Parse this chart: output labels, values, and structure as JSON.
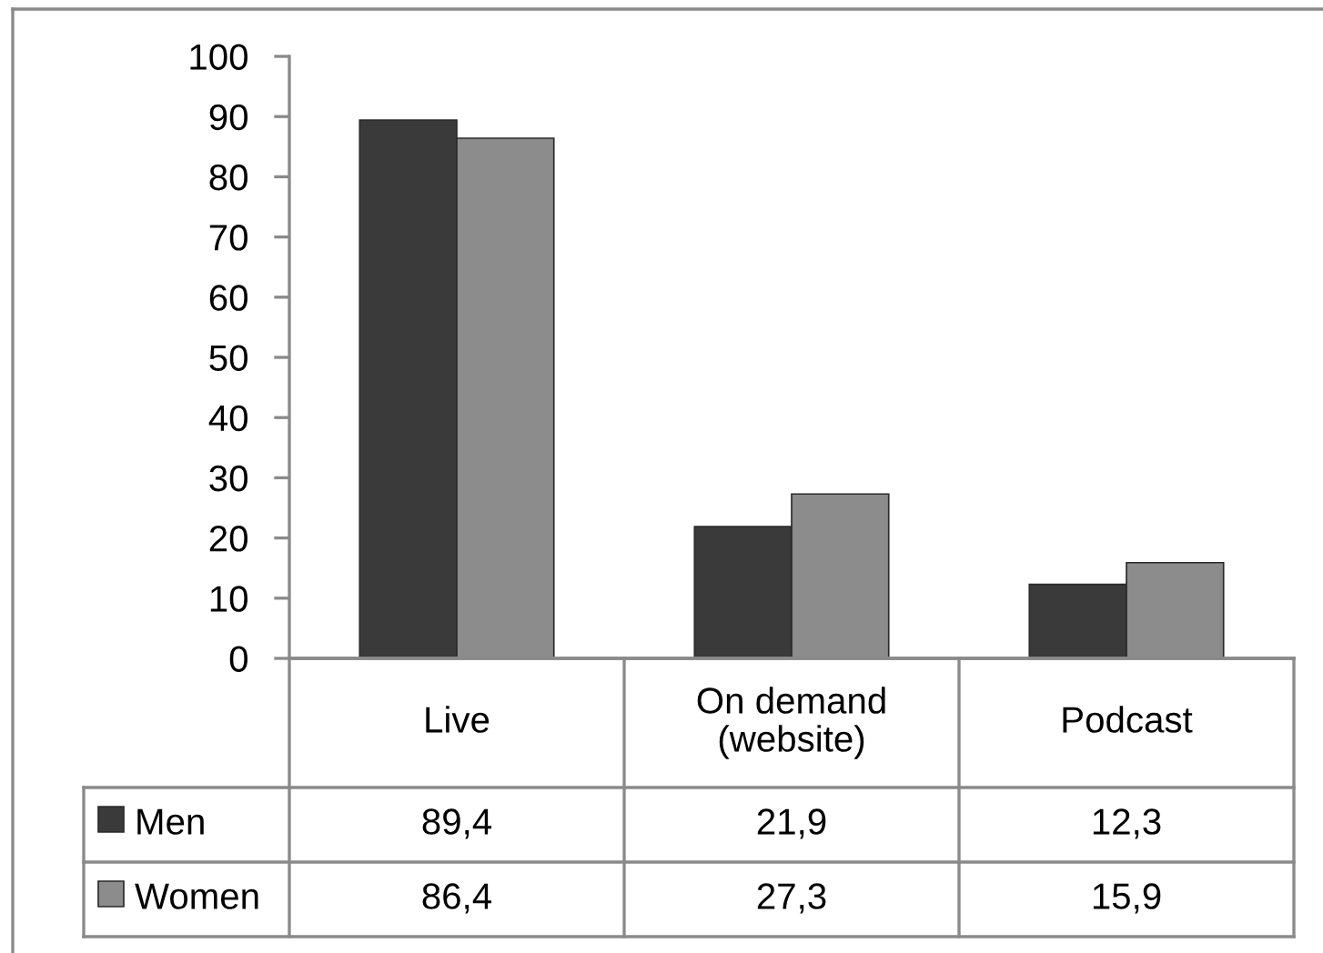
{
  "chart_data": {
    "type": "bar",
    "categories": [
      "Live",
      "On demand\n(website)",
      "Podcast"
    ],
    "series": [
      {
        "name": "Men",
        "color": "#3a3a3a",
        "values": [
          89.4,
          21.9,
          12.3
        ],
        "value_labels": [
          "89,4",
          "21,9",
          "12,3"
        ]
      },
      {
        "name": "Women",
        "color": "#8c8c8c",
        "values": [
          86.4,
          27.3,
          15.9
        ],
        "value_labels": [
          "86,4",
          "27,3",
          "15,9"
        ]
      }
    ],
    "ylim": [
      0,
      100
    ],
    "yticks": [
      0,
      10,
      20,
      30,
      40,
      50,
      60,
      70,
      80,
      90,
      100
    ],
    "legend": "bottom"
  }
}
